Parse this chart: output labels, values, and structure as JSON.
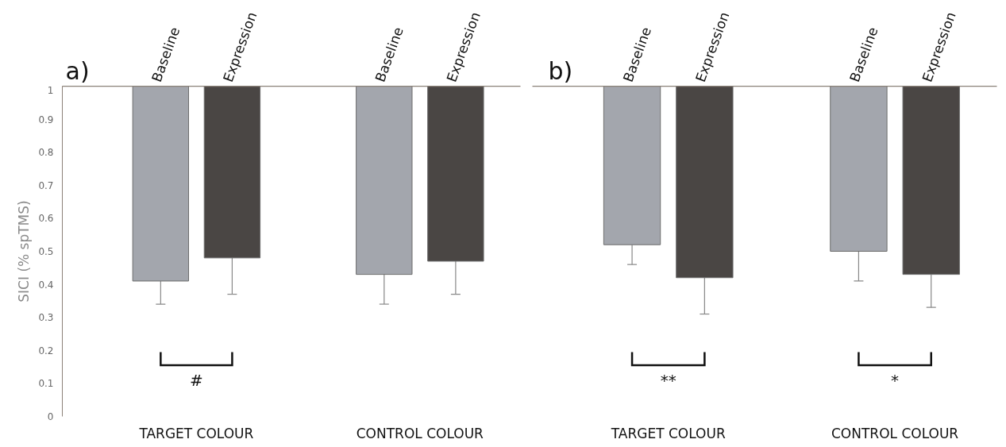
{
  "chart_data": [
    {
      "type": "bar",
      "title": "a)",
      "ylabel": "SICI (% spTMS)",
      "categories": [
        "TARGET COLOUR",
        "CONTROL COLOUR"
      ],
      "series": [
        {
          "name": "Baseline",
          "color": "#a3a6ad",
          "base": [
            1,
            1
          ],
          "values": [
            -0.59,
            -0.57
          ],
          "errors": [
            [
              0.34,
              0.41
            ],
            [
              0.34,
              0.43
            ]
          ]
        },
        {
          "name": "Expression",
          "color": "#4a4644",
          "base": [
            1,
            1
          ],
          "values": [
            -0.52,
            -0.53
          ],
          "errors": [
            [
              0.37,
              0.48
            ],
            [
              0.37,
              0.47
            ]
          ]
        }
      ],
      "ylim": [
        0,
        1
      ],
      "yticks": [
        0,
        0.1,
        0.2,
        0.3,
        0.4,
        0.5,
        0.6,
        0.7,
        0.8,
        0.9,
        1
      ],
      "annotations": [
        "#"
      ]
    },
    {
      "type": "bar",
      "title": "b)",
      "categories": [
        "TARGET COLOUR",
        "CONTROL COLOUR"
      ],
      "series": [
        {
          "name": "Baseline",
          "color": "#a3a6ad",
          "base": [
            1,
            1
          ],
          "values": [
            -0.48,
            -0.5
          ],
          "errors": [
            [
              0.46,
              0.52
            ],
            [
              0.41,
              0.5
            ]
          ]
        },
        {
          "name": "Expression",
          "color": "#4a4644",
          "base": [
            1,
            1
          ],
          "values": [
            -0.58,
            -0.57
          ],
          "errors": [
            [
              0.31,
              0.42
            ],
            [
              0.33,
              0.43
            ]
          ]
        }
      ],
      "ylim": [
        0,
        1
      ],
      "yticks": [
        0,
        0.1,
        0.2,
        0.3,
        0.4,
        0.5,
        0.6,
        0.7,
        0.8,
        0.9,
        1
      ],
      "tick_labels": "x",
      "annotations": [
        "**",
        "*"
      ]
    }
  ]
}
